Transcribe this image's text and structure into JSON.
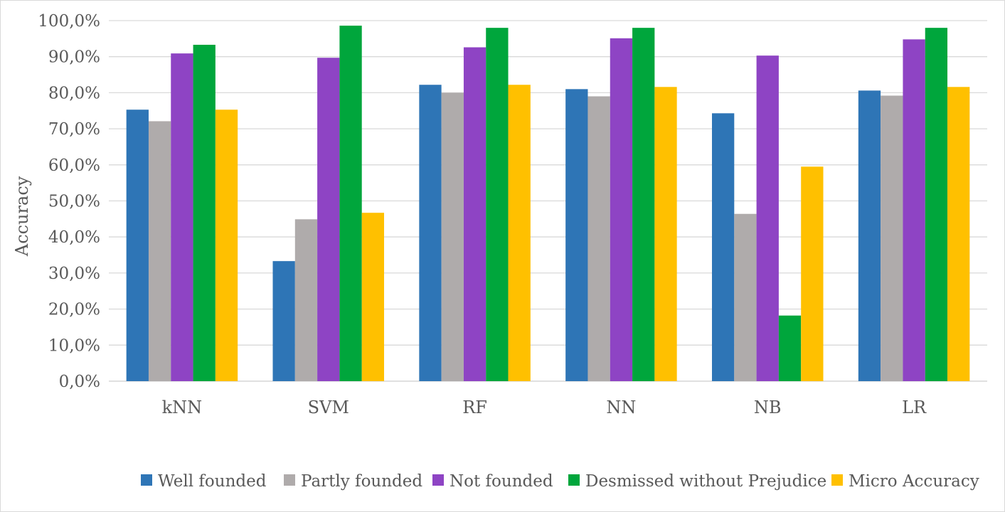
{
  "chart_data": {
    "type": "bar",
    "title": "",
    "xlabel": "",
    "ylabel": "Accuracy",
    "ylim": [
      0,
      100
    ],
    "yticks": [
      0,
      10,
      20,
      30,
      40,
      50,
      60,
      70,
      80,
      90,
      100
    ],
    "ytick_labels": [
      "0,0%",
      "10,0%",
      "20,0%",
      "30,0%",
      "40,0%",
      "50,0%",
      "60,0%",
      "70,0%",
      "80,0%",
      "90,0%",
      "100,0%"
    ],
    "grid": true,
    "legend_position": "bottom",
    "categories": [
      "kNN",
      "SVM",
      "RF",
      "NN",
      "NB",
      "LR"
    ],
    "series": [
      {
        "name": "Well founded",
        "color": "#2e75b6",
        "values": [
          75.3,
          33.3,
          82.2,
          81.0,
          74.3,
          80.6
        ]
      },
      {
        "name": "Partly founded",
        "color": "#afabab",
        "values": [
          72.1,
          44.9,
          80.0,
          79.0,
          46.4,
          79.2
        ]
      },
      {
        "name": "Not founded",
        "color": "#8e44c4",
        "values": [
          90.9,
          89.7,
          92.6,
          95.1,
          90.3,
          94.8
        ]
      },
      {
        "name": "Desmissed without Prejudice",
        "color": "#00a63c",
        "values": [
          93.3,
          98.6,
          98.0,
          98.0,
          18.2,
          98.0
        ]
      },
      {
        "name": "Micro Accuracy",
        "color": "#ffc000",
        "values": [
          75.3,
          46.7,
          82.2,
          81.6,
          59.5,
          81.6
        ]
      }
    ]
  }
}
